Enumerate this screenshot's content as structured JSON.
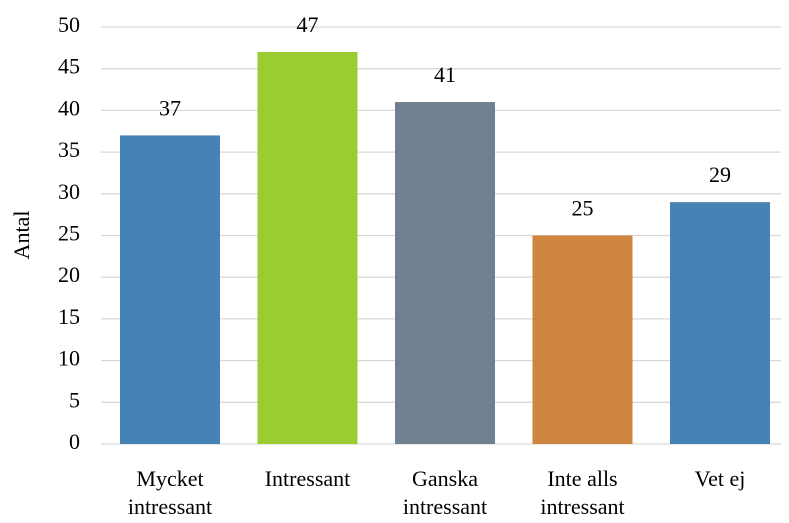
{
  "chart_data": {
    "type": "bar",
    "y_label": "Antal",
    "categories": [
      [
        "Mycket",
        "intressant"
      ],
      [
        "Intressant"
      ],
      [
        "Ganska",
        "intressant"
      ],
      [
        "Inte alls",
        "intressant"
      ],
      [
        "Vet ej"
      ]
    ],
    "values": [
      37,
      47,
      41,
      25,
      29
    ],
    "colors": [
      "#4682b4",
      "#9acd32",
      "#708090",
      "#cd853f",
      "#4682b4"
    ],
    "ylim": [
      0,
      50
    ],
    "yticks": [
      0,
      5,
      10,
      15,
      20,
      25,
      30,
      35,
      40,
      45,
      50
    ],
    "grid": true
  }
}
